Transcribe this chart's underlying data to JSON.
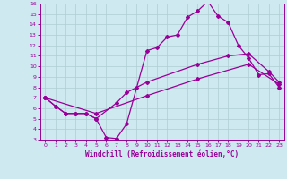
{
  "xlabel": "Windchill (Refroidissement éolien,°C)",
  "xlim": [
    -0.5,
    23.5
  ],
  "ylim": [
    3,
    16
  ],
  "xticks": [
    0,
    1,
    2,
    3,
    4,
    5,
    6,
    7,
    8,
    9,
    10,
    11,
    12,
    13,
    14,
    15,
    16,
    17,
    18,
    19,
    20,
    21,
    22,
    23
  ],
  "yticks": [
    3,
    4,
    5,
    6,
    7,
    8,
    9,
    10,
    11,
    12,
    13,
    14,
    15,
    16
  ],
  "bg_color": "#cfe9f0",
  "line_color": "#990099",
  "grid_color": "#b0cdd4",
  "line1_x": [
    0,
    1,
    2,
    3,
    4,
    5,
    6,
    7,
    8,
    9,
    10,
    11,
    12,
    13,
    14,
    15,
    16,
    17,
    18,
    19,
    20,
    21,
    22,
    23
  ],
  "line1_y": [
    7.0,
    6.2,
    5.5,
    5.5,
    5.5,
    5.0,
    3.2,
    3.1,
    4.5,
    8.0,
    11.5,
    11.8,
    12.8,
    13.0,
    14.7,
    15.3,
    16.2,
    14.8,
    14.2,
    12.0,
    10.8,
    9.2,
    9.3,
    8.0
  ],
  "line2_x": [
    0,
    1,
    2,
    3,
    4,
    5,
    7,
    8,
    10,
    15,
    18,
    20,
    22,
    23
  ],
  "line2_y": [
    7.0,
    6.2,
    5.5,
    5.5,
    5.5,
    5.0,
    6.5,
    7.5,
    8.5,
    10.2,
    11.0,
    11.2,
    9.5,
    8.5
  ],
  "line3_x": [
    0,
    5,
    10,
    15,
    20,
    23
  ],
  "line3_y": [
    7.0,
    5.5,
    7.2,
    8.8,
    10.2,
    8.3
  ],
  "marker": "D",
  "markersize": 2,
  "linewidth": 0.9,
  "tick_fontsize": 4.5,
  "xlabel_fontsize": 5.5
}
